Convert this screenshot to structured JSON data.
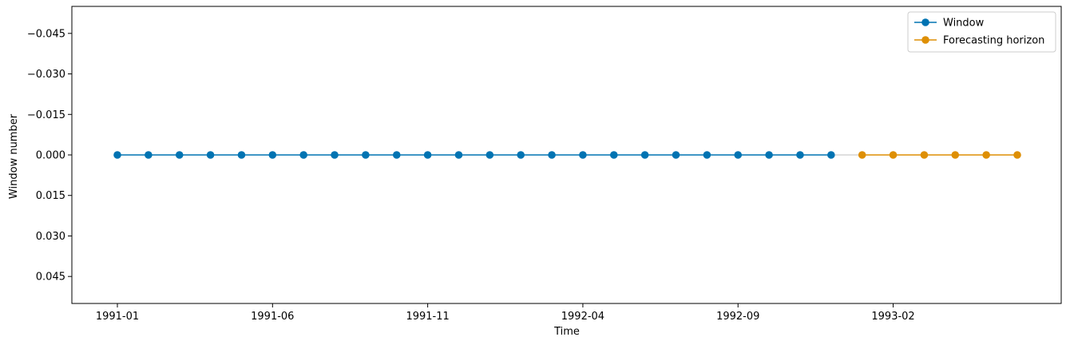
{
  "chart_data": {
    "type": "line",
    "title": "",
    "xlabel": "Time",
    "ylabel": "Window number",
    "x_tick_labels": [
      "1991-01",
      "1991-06",
      "1991-11",
      "1992-04",
      "1992-09",
      "1993-02"
    ],
    "y_tick_labels": [
      "−0.045",
      "−0.030",
      "−0.015",
      "0.000",
      "0.015",
      "0.030",
      "0.045"
    ],
    "y_inverted": true,
    "ylim": [
      -0.055,
      0.055
    ],
    "legend_position": "top-right",
    "grid": false,
    "series": [
      {
        "name": "Window",
        "color": "#0173b2",
        "marker": "circle",
        "x": [
          "1991-01",
          "1991-02",
          "1991-03",
          "1991-04",
          "1991-05",
          "1991-06",
          "1991-07",
          "1991-08",
          "1991-09",
          "1991-10",
          "1991-11",
          "1991-12",
          "1992-01",
          "1992-02",
          "1992-03",
          "1992-04",
          "1992-05",
          "1992-06",
          "1992-07",
          "1992-08",
          "1992-09",
          "1992-10",
          "1992-11",
          "1992-12"
        ],
        "y": [
          0,
          0,
          0,
          0,
          0,
          0,
          0,
          0,
          0,
          0,
          0,
          0,
          0,
          0,
          0,
          0,
          0,
          0,
          0,
          0,
          0,
          0,
          0,
          0
        ]
      },
      {
        "name": "Forecasting horizon",
        "color": "#de8f05",
        "marker": "circle",
        "x": [
          "1993-01",
          "1993-02",
          "1993-03",
          "1993-04",
          "1993-05",
          "1993-06"
        ],
        "y": [
          0,
          0,
          0,
          0,
          0,
          0
        ]
      }
    ],
    "connector_color": "#cccccc"
  }
}
